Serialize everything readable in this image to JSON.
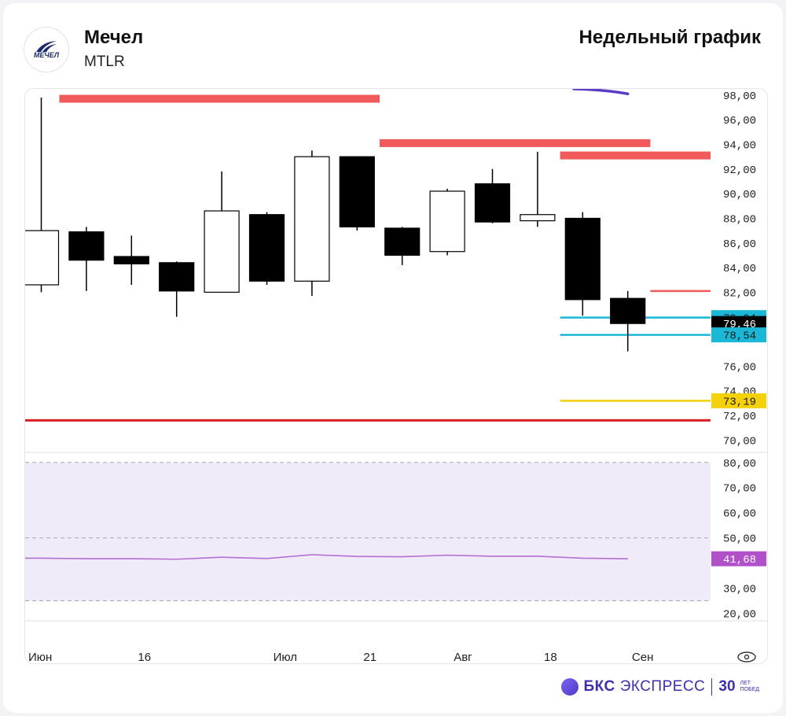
{
  "header": {
    "company": "Мечел",
    "ticker": "MTLR",
    "period": "Недельный график",
    "logo_text": "МЕЧЕЛ"
  },
  "footer": {
    "brand_bold": "БКС",
    "brand": "ЭКСПРЕСС",
    "years_num": "30",
    "years_line1": "ЛЕТ",
    "years_line2": "ПОБЕД"
  },
  "colors": {
    "up_fill": "#ffffff",
    "down_fill": "#000000",
    "resistance": "#f05a5a",
    "support_red": "#d71920",
    "cyan": "#1ab8d6",
    "yellow": "#f5d10c",
    "purple_ma": "#5b3cc4",
    "rsi": "#b36fd1",
    "rsi_band": "#efebf8"
  },
  "chart_data": [
    {
      "type": "candlestick",
      "x_ticks": [
        "Июн",
        "16",
        "Июл",
        "21",
        "Авг",
        "18",
        "Сен"
      ],
      "y_ticks": [
        "98,00",
        "96,00",
        "94,00",
        "92,00",
        "90,00",
        "88,00",
        "86,00",
        "84,00",
        "82,00",
        "76,00",
        "74,00",
        "72,00",
        "70,00"
      ],
      "ylim": [
        69,
        98.5
      ],
      "candles": [
        {
          "open": 82.6,
          "high": 97.8,
          "low": 82.0,
          "close": 87.0
        },
        {
          "open": 86.9,
          "high": 87.3,
          "low": 82.1,
          "close": 84.6
        },
        {
          "open": 84.9,
          "high": 86.6,
          "low": 82.6,
          "close": 84.3
        },
        {
          "open": 84.4,
          "high": 84.5,
          "low": 80.0,
          "close": 82.1
        },
        {
          "open": 82.0,
          "high": 91.8,
          "low": 82.0,
          "close": 88.6
        },
        {
          "open": 88.3,
          "high": 88.5,
          "low": 82.6,
          "close": 82.9
        },
        {
          "open": 82.9,
          "high": 93.5,
          "low": 81.7,
          "close": 93.0
        },
        {
          "open": 93.0,
          "high": 93.0,
          "low": 87.0,
          "close": 87.3
        },
        {
          "open": 87.2,
          "high": 87.3,
          "low": 84.2,
          "close": 85.0
        },
        {
          "open": 85.3,
          "high": 90.4,
          "low": 85.0,
          "close": 90.2
        },
        {
          "open": 90.8,
          "high": 92.0,
          "low": 87.6,
          "close": 87.7
        },
        {
          "open": 87.8,
          "high": 93.4,
          "low": 87.3,
          "close": 88.3
        },
        {
          "open": 88.0,
          "high": 88.5,
          "low": 80.1,
          "close": 81.4
        },
        {
          "open": 81.5,
          "high": 82.1,
          "low": 77.2,
          "close": 79.46
        }
      ],
      "levels": [
        {
          "value": 97.7,
          "color": "resistance",
          "kind": "zone",
          "from": 0.4,
          "to": 7.5
        },
        {
          "value": 94.1,
          "color": "resistance",
          "kind": "zone",
          "from": 7.5,
          "to": 13.5
        },
        {
          "value": 93.1,
          "color": "resistance",
          "kind": "zone",
          "from": 11.5,
          "to": 15.5
        },
        {
          "value": 82.1,
          "color": "resistance",
          "kind": "line",
          "from": 13.5,
          "to": 15.5
        },
        {
          "value": 79.94,
          "color": "cyan",
          "kind": "line",
          "from": 11.5,
          "to": 15.5
        },
        {
          "value": 78.54,
          "color": "cyan",
          "kind": "line",
          "from": 11.5,
          "to": 15.5
        },
        {
          "value": 73.19,
          "color": "yellow",
          "kind": "line",
          "from": 11.5,
          "to": 15.5
        },
        {
          "value": 71.6,
          "color": "support_red",
          "kind": "line",
          "from": -0.5,
          "to": 15.5
        }
      ],
      "price_labels": [
        {
          "text": "79,94",
          "value": 79.94,
          "bg": "#1ab8d6",
          "fg": "#1a1a1a"
        },
        {
          "text": "79,46",
          "value": 79.46,
          "bg": "#000000",
          "fg": "#ffffff"
        },
        {
          "text": "78,54",
          "value": 78.54,
          "bg": "#1ab8d6",
          "fg": "#1a1a1a"
        },
        {
          "text": "73,19",
          "value": 73.19,
          "bg": "#f5d10c",
          "fg": "#1a1a1a"
        }
      ],
      "moving_average": {
        "from_index": 12.5,
        "values": [
          98.5,
          98.1
        ]
      }
    },
    {
      "type": "line",
      "name": "RSI",
      "ylim": [
        17,
        84
      ],
      "y_ticks": [
        "80,00",
        "70,00",
        "60,00",
        "50,00",
        "30,00",
        "20,00"
      ],
      "band": [
        25,
        80
      ],
      "dashed": [
        80,
        50,
        25
      ],
      "values": [
        41.9,
        41.7,
        41.7,
        41.5,
        42.3,
        41.8,
        43.3,
        42.6,
        42.5,
        43.1,
        42.7,
        42.7,
        41.9,
        41.68
      ],
      "last_label": {
        "text": "41,68",
        "value": 41.68,
        "bg": "#b150c8",
        "fg": "#ffffff"
      }
    }
  ]
}
